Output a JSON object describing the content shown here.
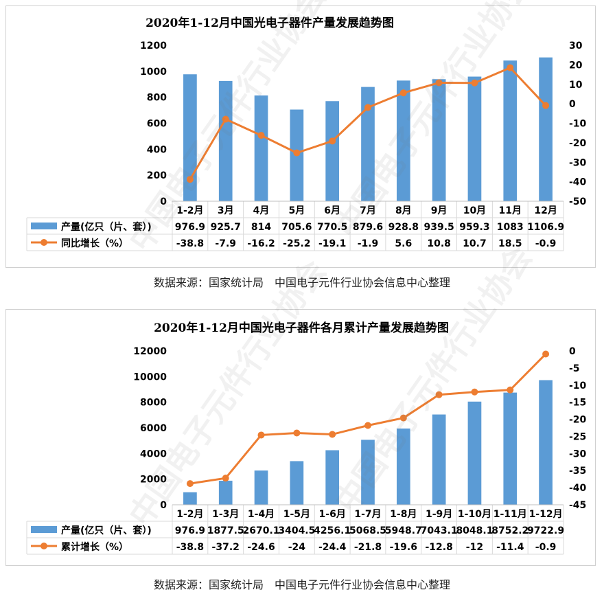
{
  "colors": {
    "bar": "#5B9BD5",
    "line": "#ED7D31",
    "grid": "#d9d9d9",
    "axis": "#000000"
  },
  "watermark": "中国电子元件行业协会",
  "chart_data": [
    {
      "type": "bar",
      "title": "2020年1-12月中国光电子器件产量发展趋势图",
      "categories": [
        "1-2月",
        "3月",
        "4月",
        "5月",
        "6月",
        "7月",
        "8月",
        "9月",
        "10月",
        "11月",
        "12月"
      ],
      "series": [
        {
          "name": "产量(亿只（片、套）)",
          "type": "bar",
          "axis": "left",
          "values": [
            976.9,
            925.7,
            814,
            705.6,
            770.5,
            879.6,
            928.8,
            939.5,
            959.3,
            1083,
            1106.9
          ],
          "labels": [
            "976.9",
            "925.7",
            "814",
            "705.6",
            "770.5",
            "879.6",
            "928.8",
            "939.5",
            "959.3",
            "1083",
            "1106.9"
          ]
        },
        {
          "name": "同比增长（%）",
          "type": "line",
          "axis": "right",
          "values": [
            -38.8,
            -7.9,
            -16.2,
            -25.2,
            -19.1,
            -1.9,
            5.6,
            10.8,
            10.7,
            18.5,
            -0.9
          ],
          "labels": [
            "-38.8",
            "-7.9",
            "-16.2",
            "-25.2",
            "-19.1",
            "-1.9",
            "5.6",
            "10.8",
            "10.7",
            "18.5",
            "-0.9"
          ]
        }
      ],
      "left_axis": {
        "ylim": [
          0,
          1200
        ],
        "ticks": [
          "0",
          "200",
          "400",
          "600",
          "800",
          "1000",
          "1200"
        ]
      },
      "right_axis": {
        "ylim": [
          -50,
          30
        ],
        "ticks": [
          "-50",
          "-40",
          "-30",
          "-20",
          "-10",
          "0",
          "10",
          "20",
          "30"
        ]
      },
      "grid": false,
      "legend": "data-table",
      "source": "数据来源：国家统计局　中国电子元件行业协会信息中心整理"
    },
    {
      "type": "bar",
      "title": "2020年1-12月中国光电子器件各月累计产量发展趋势图",
      "categories": [
        "1-2月",
        "1-3月",
        "1-4月",
        "1-5月",
        "1-6月",
        "1-7月",
        "1-8月",
        "1-9月",
        "1-10月",
        "1-11月",
        "1-12月"
      ],
      "series": [
        {
          "name": "产量(亿只（片、套）)",
          "type": "bar",
          "axis": "left",
          "values": [
            976.9,
            1877.5,
            2670.1,
            3404.5,
            4256.1,
            5068.5,
            5948.7,
            7043.1,
            8048.1,
            8752.2,
            9722.9
          ],
          "labels": [
            "976.9",
            "1877.5",
            "2670.1",
            "3404.5",
            "4256.1",
            "5068.5",
            "5948.7",
            "7043.1",
            "8048.1",
            "8752.2",
            "9722.9"
          ]
        },
        {
          "name": "累计增长（%）",
          "type": "line",
          "axis": "right",
          "values": [
            -38.8,
            -37.2,
            -24.6,
            -24,
            -24.4,
            -21.8,
            -19.6,
            -12.8,
            -12,
            -11.4,
            -0.9
          ],
          "labels": [
            "-38.8",
            "-37.2",
            "-24.6",
            "-24",
            "-24.4",
            "-21.8",
            "-19.6",
            "-12.8",
            "-12",
            "-11.4",
            "-0.9"
          ]
        }
      ],
      "left_axis": {
        "ylim": [
          0,
          12000
        ],
        "ticks": [
          "0",
          "2000",
          "4000",
          "6000",
          "8000",
          "10000",
          "12000"
        ]
      },
      "right_axis": {
        "ylim": [
          -45,
          0
        ],
        "ticks": [
          "-45",
          "-40",
          "-35",
          "-30",
          "-25",
          "-20",
          "-15",
          "-10",
          "-5",
          "0"
        ]
      },
      "grid": false,
      "legend": "data-table",
      "source": "数据来源：国家统计局　中国电子元件行业协会信息中心整理"
    }
  ]
}
